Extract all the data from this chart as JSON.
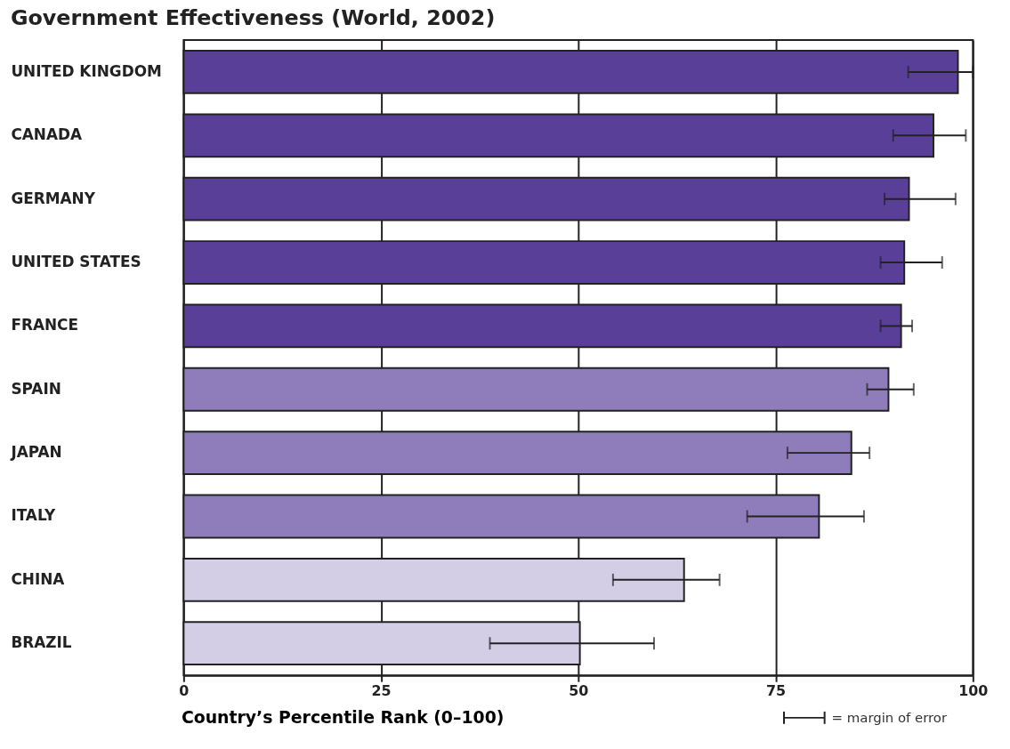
{
  "chart_data": {
    "type": "bar",
    "orientation": "horizontal",
    "title": "Government Effectiveness (World, 2002)",
    "xlabel": "Country’s Percentile Rank (0–100)",
    "categories": [
      "UNITED KINGDOM",
      "CANADA",
      "GERMANY",
      "UNITED STATES",
      "FRANCE",
      "SPAIN",
      "JAPAN",
      "ITALY",
      "CHINA",
      "BRAZIL"
    ],
    "values": [
      98.1,
      95.0,
      91.9,
      91.3,
      90.9,
      89.3,
      84.6,
      80.5,
      63.4,
      50.2
    ],
    "errors": [
      [
        91.8,
        100
      ],
      [
        89.9,
        99.1
      ],
      [
        88.8,
        97.8
      ],
      [
        88.3,
        96.1
      ],
      [
        88.3,
        92.3
      ],
      [
        86.6,
        92.5
      ],
      [
        76.5,
        86.9
      ],
      [
        71.4,
        86.2
      ],
      [
        54.4,
        67.9
      ],
      [
        38.8,
        59.6
      ]
    ],
    "colors": [
      "#5a3f99",
      "#5a3f99",
      "#5a3f99",
      "#5a3f99",
      "#5a3f99",
      "#8f7dbb",
      "#8f7dbb",
      "#8f7dbb",
      "#d3cde6",
      "#d3cde6"
    ],
    "xlim": [
      0,
      100
    ],
    "xticks": [
      0,
      25,
      50,
      75,
      100
    ],
    "grid": "x",
    "annotations": [
      "= margin of error"
    ]
  }
}
